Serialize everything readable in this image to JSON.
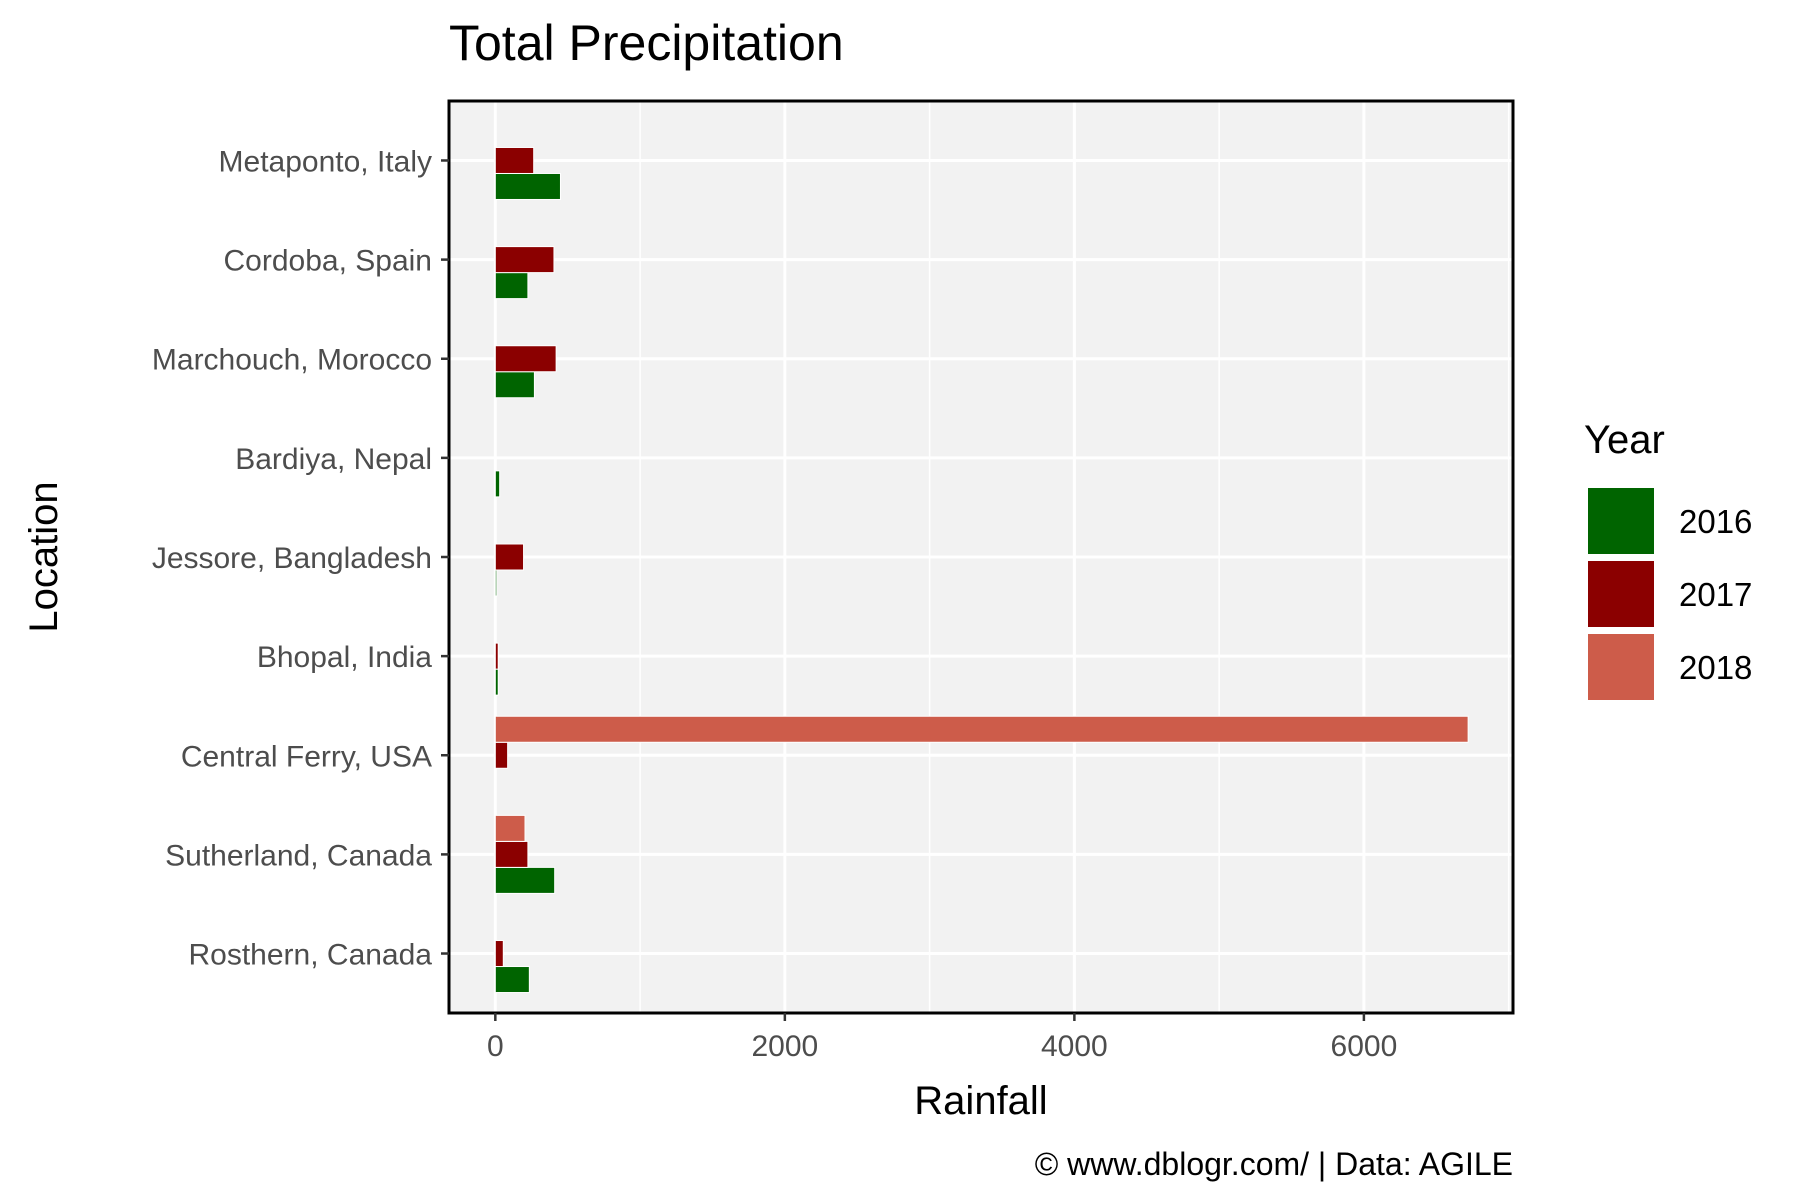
{
  "chart_data": {
    "type": "bar",
    "orientation": "horizontal",
    "title": "Total Precipitation",
    "xlabel": "Rainfall",
    "ylabel": "Location",
    "caption": "© www.dblogr.com/  |  Data: AGILE",
    "categories": [
      "Metaponto, Italy",
      "Cordoba, Spain",
      "Marchouch, Morocco",
      "Bardiya, Nepal",
      "Jessore, Bangladesh",
      "Bhopal, India",
      "Central Ferry, USA",
      "Sutherland, Canada",
      "Rosthern, Canada"
    ],
    "series": [
      {
        "name": "2016",
        "color": "#006400",
        "values": [
          450,
          225,
          270,
          30,
          10,
          20,
          null,
          410,
          235
        ]
      },
      {
        "name": "2017",
        "color": "#8B0000",
        "values": [
          265,
          405,
          420,
          null,
          195,
          20,
          85,
          225,
          55
        ]
      },
      {
        "name": "2018",
        "color": "#CD5C4A",
        "values": [
          null,
          null,
          null,
          null,
          null,
          null,
          6720,
          205,
          null
        ]
      }
    ],
    "xlim": [
      -320,
      7030
    ],
    "xticks": [
      0,
      2000,
      4000,
      6000
    ],
    "xtick_labels": [
      "0",
      "2000",
      "4000",
      "6000"
    ],
    "grid": true,
    "legend_title": "Year",
    "legend_position": "right",
    "panel_background": "#F2F2F2",
    "grid_color": "#FFFFFF"
  }
}
